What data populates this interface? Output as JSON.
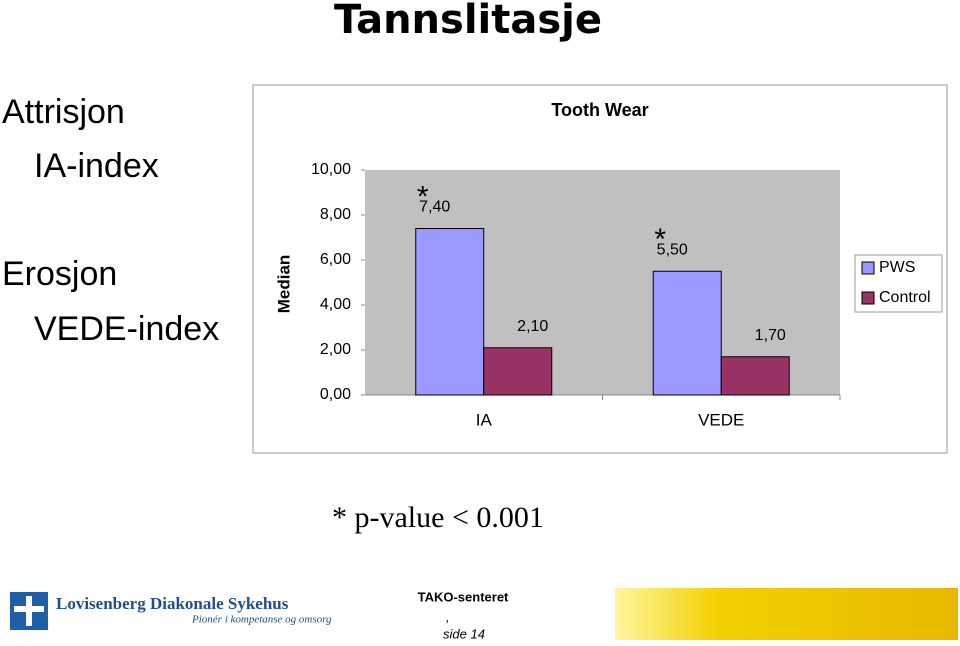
{
  "slide": {
    "title": "Tannslitasje",
    "left_labels": [
      "Attrisjon",
      "IA-index",
      "Erosjon",
      "VEDE-index"
    ],
    "footnote": "* p-value < 0.001",
    "logo_name": "Lovisenberg Diakonale Sykehus",
    "logo_tagline": "Pionér i kompetanse og omsorg",
    "center_title": "TAKO-senteret",
    "page_prefix": ",",
    "page": "side 14"
  },
  "chart_data": {
    "type": "bar",
    "title": "Tooth Wear",
    "y_label": "Median",
    "categories": [
      "IA",
      "VEDE"
    ],
    "significance_markers": [
      "*",
      "*"
    ],
    "series": [
      {
        "name": "PWS",
        "color": "#9999ff",
        "values": [
          7.4,
          5.5
        ],
        "value_labels": [
          "7,40",
          "5,50"
        ]
      },
      {
        "name": "Control",
        "color": "#993366",
        "values": [
          2.1,
          1.7
        ],
        "value_labels": [
          "2,10",
          "1,70"
        ]
      }
    ],
    "ylim": [
      0,
      10
    ],
    "yticks": [
      {
        "value": 0,
        "label": "0,00"
      },
      {
        "value": 2,
        "label": "2,00"
      },
      {
        "value": 4,
        "label": "4,00"
      },
      {
        "value": 6,
        "label": "6,00"
      },
      {
        "value": 8,
        "label": "8,00"
      },
      {
        "value": 10,
        "label": "10,00"
      }
    ],
    "plot_background": "#c0c0c0",
    "legend": "right"
  }
}
